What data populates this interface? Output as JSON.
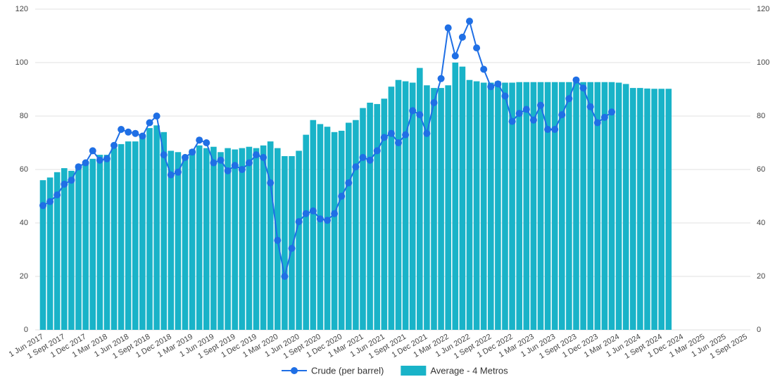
{
  "chart_data": {
    "type": "combo",
    "categories": [
      "1 Jun 2017",
      null,
      null,
      "1 Sept 2017",
      null,
      null,
      "1 Dec 2017",
      null,
      null,
      "1 Mar 2018",
      null,
      null,
      "1 Jun 2018",
      null,
      null,
      "1 Sept 2018",
      null,
      null,
      "1 Dec 2018",
      null,
      null,
      "1 Mar 2019",
      null,
      null,
      "1 Jun 2019",
      null,
      null,
      "1 Sept 2019",
      null,
      null,
      "1 Dec 2019",
      null,
      null,
      "1 Mar 2020",
      null,
      null,
      "1 Jun 2020",
      null,
      null,
      "1 Sept 2020",
      null,
      null,
      "1 Dec 2020",
      null,
      null,
      "1 Mar 2021",
      null,
      null,
      "1 Jun 2021",
      null,
      null,
      "1 Sept 2021",
      null,
      null,
      "1 Dec 2021",
      null,
      null,
      "1 Mar 2022",
      null,
      null,
      "1 Jun 2022",
      null,
      null,
      "1 Sept 2022",
      null,
      null,
      "1 Dec 2022",
      null,
      null,
      "1 Mar 2023",
      null,
      null,
      "1 Jun 2023",
      null,
      null,
      "1 Sept 2023",
      null,
      null,
      "1 Dec 2023",
      null,
      null,
      "1 Mar 2024",
      null,
      null,
      "1 Jun 2024",
      null,
      null,
      "1 Sept 2024",
      null,
      null,
      "1 Dec 2024",
      null,
      null,
      "1 Mar 2025",
      null,
      null,
      "1 Jun 2025",
      null,
      null,
      "1 Sept 2025"
    ],
    "series": [
      {
        "name": "Crude (per barrel)",
        "type": "line",
        "color": "#1f6fe5",
        "values": [
          46.5,
          48,
          50.5,
          54.5,
          56,
          61,
          62.5,
          67,
          63.5,
          64,
          69,
          75,
          74,
          73.5,
          72.5,
          77.5,
          80,
          65.5,
          58,
          59,
          64.5,
          66.5,
          71,
          70,
          62.5,
          63.5,
          59.5,
          61.5,
          60,
          62.5,
          65.5,
          64.5,
          55,
          33.5,
          20,
          30.5,
          40.5,
          43.5,
          44.5,
          41.5,
          41,
          43.5,
          50,
          55,
          61,
          64.5,
          63.5,
          67,
          72,
          73.5,
          70,
          73,
          82,
          80.5,
          73.5,
          85,
          94,
          113,
          102.5,
          109.5,
          115.5,
          105.5,
          97.5,
          91,
          92,
          87.5,
          78,
          81,
          82.5,
          78.5,
          84,
          75,
          75,
          80.5,
          86.5,
          93.5,
          90.5,
          83.5,
          77.5,
          79.5,
          81.5,
          null,
          null,
          null,
          null,
          null,
          null,
          null,
          null,
          null,
          null,
          null,
          null,
          null,
          null,
          null,
          null,
          null,
          null,
          null
        ]
      },
      {
        "name": "Average - 4 Metros",
        "type": "bar",
        "color": "#19b3c8",
        "values": [
          56,
          57,
          59,
          60.5,
          59.5,
          61,
          62,
          64,
          65.5,
          65.5,
          68,
          69.5,
          70.5,
          70.5,
          72,
          75.5,
          76.5,
          74,
          67,
          66.5,
          65,
          67.5,
          69,
          68,
          68.5,
          66.5,
          68,
          67.5,
          68,
          68.5,
          68,
          69,
          70.5,
          68,
          65,
          65,
          67,
          73,
          78.5,
          77,
          76,
          74,
          74.5,
          77.5,
          78.5,
          83,
          85,
          84.5,
          86.5,
          91,
          93.5,
          93,
          92.5,
          98,
          91.5,
          90.5,
          90.5,
          91.5,
          100,
          98.5,
          93.5,
          93,
          92.5,
          92.5,
          93,
          92.5,
          92.5,
          92.7,
          92.7,
          92.7,
          92.7,
          92.7,
          92.7,
          92.7,
          92.7,
          92.7,
          92.7,
          92.7,
          92.7,
          92.7,
          92.7,
          92.5,
          92,
          90.5,
          90.5,
          90.3,
          90.2,
          90.2,
          90.2,
          null,
          null,
          null,
          null,
          null,
          null,
          null,
          null,
          null,
          null,
          null
        ]
      }
    ],
    "ylim": [
      0,
      120
    ],
    "yticks": [
      0,
      20,
      40,
      60,
      80,
      100,
      120
    ],
    "y2lim": [
      0,
      120
    ],
    "y2ticks": [
      0,
      20,
      40,
      60,
      80,
      100,
      120
    ],
    "grid": true,
    "legend": "bottom"
  }
}
